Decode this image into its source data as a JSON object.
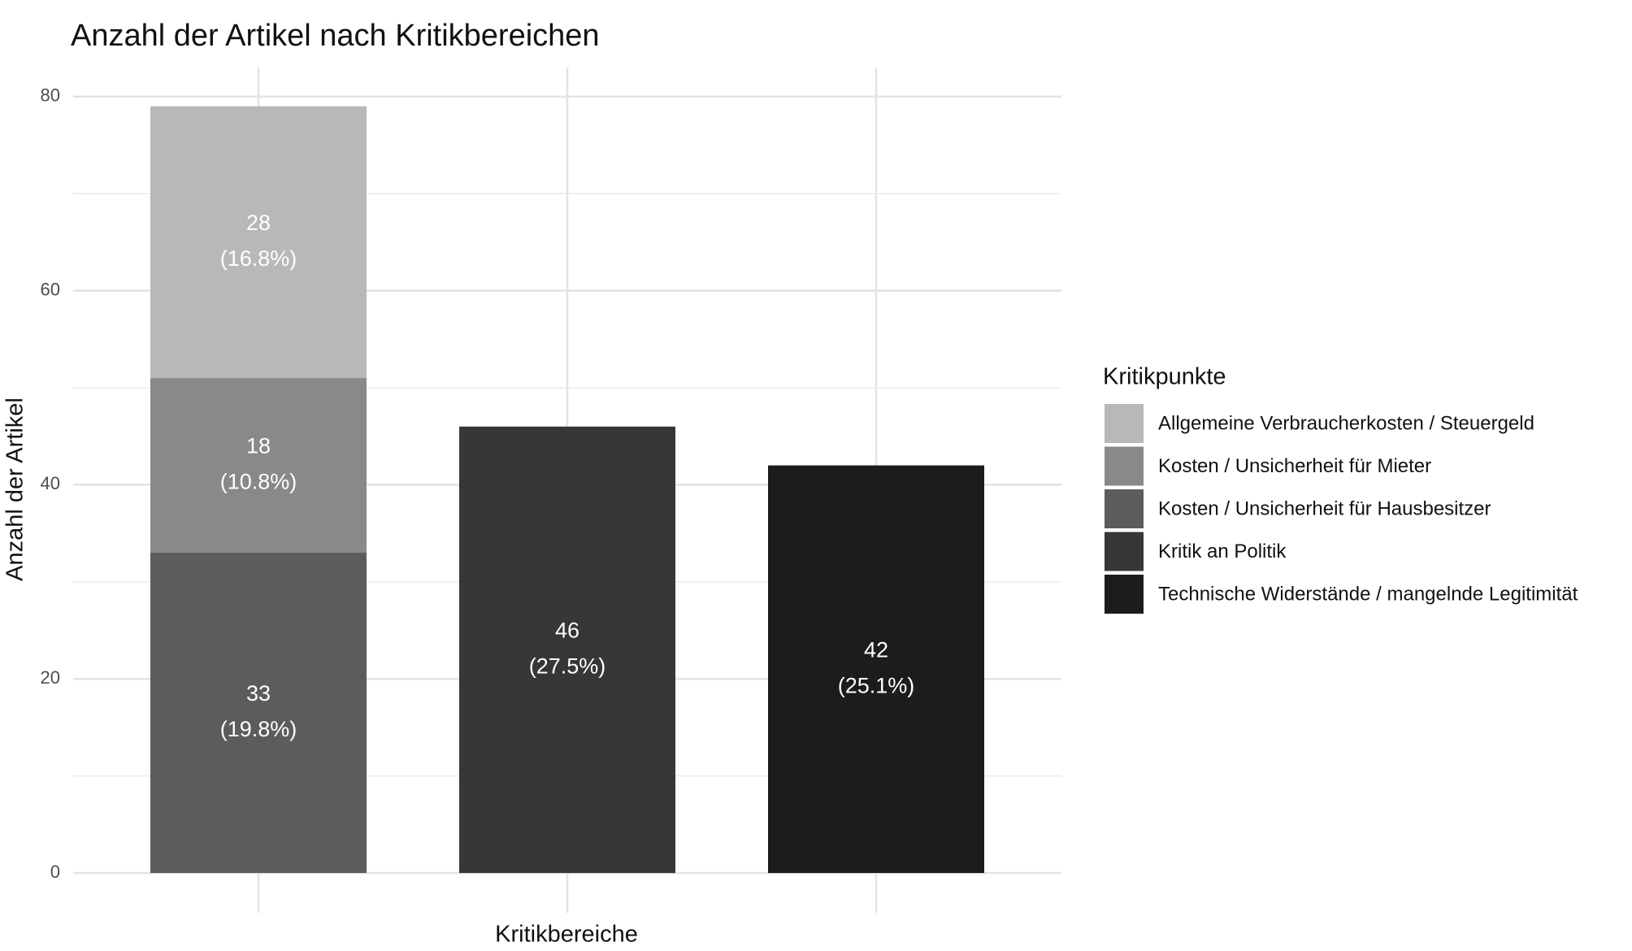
{
  "chart_data": {
    "type": "bar",
    "stacked": true,
    "title": "Anzahl der Artikel nach Kritikbereichen",
    "x_label": "Kritikbereiche",
    "y_label": "Anzahl der Artikel",
    "legend_title": "Kritikpunkte",
    "legend_position": "right",
    "categories": [
      null,
      null,
      null
    ],
    "series": [
      {
        "name": "Allgemeine Verbraucherkosten / Steuergeld",
        "color": "#b8b8b8",
        "values": [
          28,
          null,
          null
        ],
        "value_labels": [
          [
            "28",
            "(16.8%)"
          ],
          null,
          null
        ]
      },
      {
        "name": "Kosten / Unsicherheit für Mieter",
        "color": "#898989",
        "values": [
          18,
          null,
          null
        ],
        "value_labels": [
          [
            "18",
            "(10.8%)"
          ],
          null,
          null
        ]
      },
      {
        "name": "Kosten / Unsicherheit für Hausbesitzer",
        "color": "#5c5c5c",
        "values": [
          33,
          null,
          null
        ],
        "value_labels": [
          [
            "33",
            "(19.8%)"
          ],
          null,
          null
        ]
      },
      {
        "name": "Kritik an Politik",
        "color": "#373737",
        "values": [
          null,
          46,
          null
        ],
        "value_labels": [
          null,
          [
            "46",
            "(27.5%)"
          ],
          null
        ]
      },
      {
        "name": "Technische Widerstände / mangelnde Legitimität",
        "color": "#1c1c1c",
        "values": [
          null,
          null,
          42
        ],
        "value_labels": [
          null,
          null,
          [
            "42",
            "(25.1%)"
          ]
        ]
      }
    ],
    "ylim": [
      -4.1,
      83.0
    ],
    "yticks": [
      0,
      20,
      40,
      60,
      80
    ],
    "grid": true
  }
}
